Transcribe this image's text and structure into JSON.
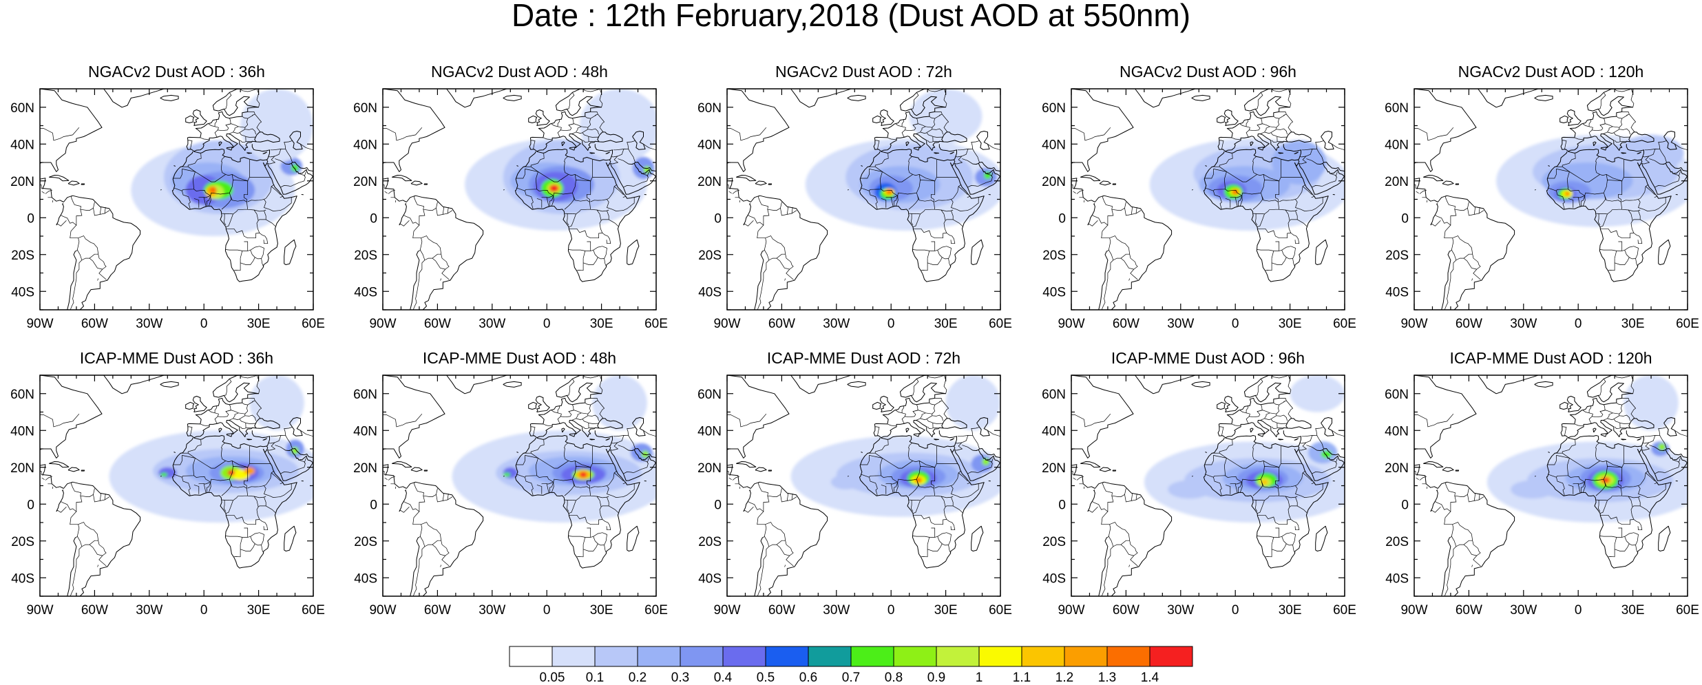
{
  "title": "Date : 12th February,2018 (Dust AOD at 550nm)",
  "panels": [
    {
      "title": "NGACv2 Dust AOD : 36h"
    },
    {
      "title": "NGACv2 Dust AOD : 48h"
    },
    {
      "title": "NGACv2 Dust AOD : 72h"
    },
    {
      "title": "NGACv2 Dust AOD : 96h"
    },
    {
      "title": "NGACv2 Dust AOD : 120h"
    },
    {
      "title": "ICAP-MME Dust AOD : 36h"
    },
    {
      "title": "ICAP-MME Dust AOD : 48h"
    },
    {
      "title": "ICAP-MME Dust AOD : 72h"
    },
    {
      "title": "ICAP-MME Dust AOD : 96h"
    },
    {
      "title": "ICAP-MME Dust AOD : 120h"
    }
  ],
  "map": {
    "lon_range": [
      -90,
      60
    ],
    "lat_range": [
      -50,
      70
    ],
    "x_ticks": [
      {
        "value": -90,
        "label": "90W"
      },
      {
        "value": -60,
        "label": "60W"
      },
      {
        "value": -30,
        "label": "30W"
      },
      {
        "value": 0,
        "label": "0"
      },
      {
        "value": 30,
        "label": "30E"
      },
      {
        "value": 60,
        "label": "60E"
      }
    ],
    "y_ticks": [
      {
        "value": 60,
        "label": "60N"
      },
      {
        "value": 40,
        "label": "40N"
      },
      {
        "value": 20,
        "label": "20N"
      },
      {
        "value": 0,
        "label": "0"
      },
      {
        "value": -20,
        "label": "20S"
      },
      {
        "value": -40,
        "label": "40S"
      }
    ]
  },
  "colorbar": {
    "labels": [
      "0.05",
      "0.1",
      "0.2",
      "0.3",
      "0.4",
      "0.5",
      "0.6",
      "0.7",
      "0.8",
      "0.9",
      "1",
      "1.1",
      "1.2",
      "1.3",
      "1.4"
    ],
    "colors": [
      "#ffffff",
      "#d6e0fa",
      "#b8c8f8",
      "#9ab2f6",
      "#7f96f2",
      "#6a6cee",
      "#1a5ef0",
      "#119c9c",
      "#4cee18",
      "#8ef016",
      "#c2f23a",
      "#fafa00",
      "#fbc500",
      "#fb9e00",
      "#fb6e00",
      "#f52020"
    ]
  }
}
